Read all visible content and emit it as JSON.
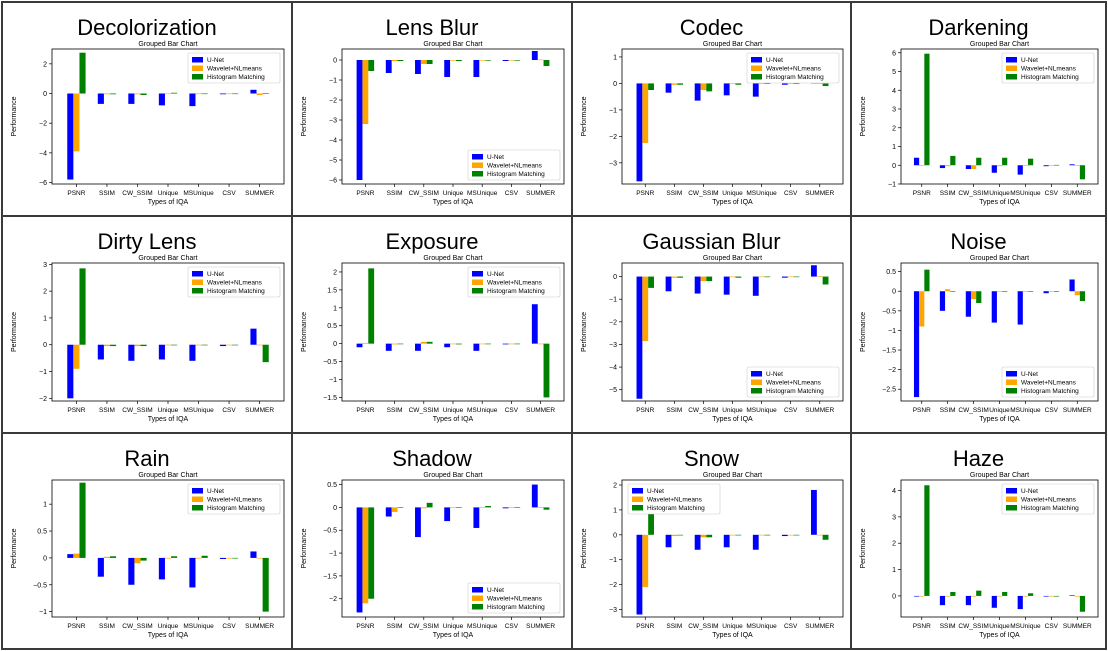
{
  "legend_labels": [
    "U-Net",
    "Wavelet+NLmeans",
    "Histogram Matching"
  ],
  "series_colors": [
    "#0000ff",
    "#ffa500",
    "#008000"
  ],
  "categories": [
    "PSNR",
    "SSIM",
    "CW_SSIM",
    "Unique",
    "MSUnique",
    "CSV",
    "SUMMER"
  ],
  "chart_title": "Grouped Bar Chart",
  "xlabel": "Types of IQA",
  "ylabel": "Performance",
  "chart_data": [
    {
      "type": "bar",
      "panel_title": "Decolorization",
      "title": "Grouped Bar Chart",
      "xlabel": "Types of IQA",
      "ylabel": "Performance",
      "categories": [
        "PSNR",
        "SSIM",
        "CW_SSIM",
        "Unique",
        "MSUnique",
        "CSV",
        "SUMMER"
      ],
      "series": [
        {
          "name": "U-Net",
          "values": [
            -5.8,
            -0.7,
            -0.7,
            -0.8,
            -0.85,
            -0.05,
            0.25
          ]
        },
        {
          "name": "Wavelet+NLmeans",
          "values": [
            -3.9,
            -0.05,
            -0.05,
            -0.02,
            0.0,
            0.0,
            -0.1
          ]
        },
        {
          "name": "Histogram Matching",
          "values": [
            2.75,
            -0.05,
            -0.1,
            0.05,
            0.0,
            0.0,
            0.03
          ]
        }
      ],
      "yticks": [
        -6,
        -4,
        -2,
        0,
        2
      ],
      "ylim": [
        -6.1,
        3.0
      ],
      "legend": "top-right"
    },
    {
      "type": "bar",
      "panel_title": "Lens Blur",
      "title": "Grouped Bar Chart",
      "xlabel": "Types of IQA",
      "ylabel": "Performance",
      "categories": [
        "PSNR",
        "SSIM",
        "CW_SSIM",
        "Unique",
        "MSUnique",
        "CSV",
        "SUMMER"
      ],
      "series": [
        {
          "name": "U-Net",
          "values": [
            -6.0,
            -0.65,
            -0.7,
            -0.85,
            -0.85,
            -0.05,
            0.45
          ]
        },
        {
          "name": "Wavelet+NLmeans",
          "values": [
            -3.2,
            -0.05,
            -0.2,
            -0.02,
            -0.02,
            0.0,
            0.02
          ]
        },
        {
          "name": "Histogram Matching",
          "values": [
            -0.55,
            -0.05,
            -0.2,
            -0.05,
            0.0,
            0.0,
            -0.3
          ]
        }
      ],
      "yticks": [
        -6,
        -5,
        -4,
        -3,
        -2,
        -1,
        0
      ],
      "ylim": [
        -6.2,
        0.55
      ],
      "legend": "bottom-right"
    },
    {
      "type": "bar",
      "panel_title": "Codec",
      "title": "Grouped Bar Chart",
      "xlabel": "Types of IQA",
      "ylabel": "Performance",
      "categories": [
        "PSNR",
        "SSIM",
        "CW_SSIM",
        "Unique",
        "MSUnique",
        "CSV",
        "SUMMER"
      ],
      "series": [
        {
          "name": "U-Net",
          "values": [
            -3.7,
            -0.35,
            -0.65,
            -0.45,
            -0.5,
            -0.05,
            1.1
          ]
        },
        {
          "name": "Wavelet+NLmeans",
          "values": [
            -2.25,
            -0.05,
            -0.25,
            -0.02,
            0.0,
            0.0,
            0.0
          ]
        },
        {
          "name": "Histogram Matching",
          "values": [
            -0.25,
            -0.05,
            -0.3,
            -0.05,
            0.0,
            0.0,
            -0.1
          ]
        }
      ],
      "yticks": [
        -3,
        -2,
        -1,
        0,
        1
      ],
      "ylim": [
        -3.8,
        1.3
      ],
      "legend": "top-right"
    },
    {
      "type": "bar",
      "panel_title": "Darkening",
      "title": "Grouped Bar Chart",
      "xlabel": "Types of IQA",
      "ylabel": "Performance",
      "categories": [
        "PSNR",
        "SSIM",
        "CW_SSIM",
        "Unique",
        "MSUnique",
        "CSV",
        "SUMMER"
      ],
      "series": [
        {
          "name": "U-Net",
          "values": [
            0.4,
            -0.15,
            -0.2,
            -0.4,
            -0.5,
            -0.05,
            0.05
          ]
        },
        {
          "name": "Wavelet+NLmeans",
          "values": [
            0.0,
            -0.05,
            -0.2,
            -0.05,
            0.0,
            0.0,
            0.0
          ]
        },
        {
          "name": "Histogram Matching",
          "values": [
            5.95,
            0.5,
            0.4,
            0.4,
            0.35,
            0.02,
            -0.75
          ]
        }
      ],
      "yticks": [
        -1,
        0,
        1,
        2,
        3,
        4,
        5,
        6
      ],
      "ylim": [
        -1.0,
        6.2
      ],
      "legend": "top-right"
    },
    {
      "type": "bar",
      "panel_title": "Dirty Lens",
      "title": "Grouped Bar Chart",
      "xlabel": "Types of IQA",
      "ylabel": "Performance",
      "categories": [
        "PSNR",
        "SSIM",
        "CW_SSIM",
        "Unique",
        "MSUnique",
        "CSV",
        "SUMMER"
      ],
      "series": [
        {
          "name": "U-Net",
          "values": [
            -2.0,
            -0.55,
            -0.6,
            -0.55,
            -0.6,
            -0.05,
            0.6
          ]
        },
        {
          "name": "Wavelet+NLmeans",
          "values": [
            -0.9,
            -0.05,
            -0.05,
            -0.02,
            0.0,
            0.0,
            0.0
          ]
        },
        {
          "name": "Histogram Matching",
          "values": [
            2.85,
            -0.05,
            -0.05,
            -0.02,
            0.0,
            0.0,
            -0.65
          ]
        }
      ],
      "yticks": [
        -2,
        -1,
        0,
        1,
        2,
        3
      ],
      "ylim": [
        -2.1,
        3.05
      ],
      "legend": "top-right"
    },
    {
      "type": "bar",
      "panel_title": "Exposure",
      "title": "Grouped Bar Chart",
      "xlabel": "Types of IQA",
      "ylabel": "Performance",
      "categories": [
        "PSNR",
        "SSIM",
        "CW_SSIM",
        "Unique",
        "MSUnique",
        "CSV",
        "SUMMER"
      ],
      "series": [
        {
          "name": "U-Net",
          "values": [
            -0.1,
            -0.2,
            -0.2,
            -0.1,
            -0.2,
            -0.02,
            1.1
          ]
        },
        {
          "name": "Wavelet+NLmeans",
          "values": [
            0.02,
            -0.02,
            0.05,
            0.0,
            0.0,
            0.0,
            0.0
          ]
        },
        {
          "name": "Histogram Matching",
          "values": [
            2.1,
            0.0,
            0.05,
            -0.02,
            0.0,
            0.0,
            -1.5
          ]
        }
      ],
      "yticks": [
        -1.5,
        -1.0,
        -0.5,
        0.0,
        0.5,
        1.0,
        1.5,
        2.0
      ],
      "ylim": [
        -1.6,
        2.25
      ],
      "legend": "top-right"
    },
    {
      "type": "bar",
      "panel_title": "Gaussian Blur",
      "title": "Grouped Bar Chart",
      "xlabel": "Types of IQA",
      "ylabel": "Performance",
      "categories": [
        "PSNR",
        "SSIM",
        "CW_SSIM",
        "Unique",
        "MSUnique",
        "CSV",
        "SUMMER"
      ],
      "series": [
        {
          "name": "U-Net",
          "values": [
            -5.4,
            -0.65,
            -0.75,
            -0.8,
            -0.85,
            -0.05,
            0.5
          ]
        },
        {
          "name": "Wavelet+NLmeans",
          "values": [
            -2.85,
            -0.05,
            -0.2,
            -0.02,
            0.0,
            0.0,
            0.02
          ]
        },
        {
          "name": "Histogram Matching",
          "values": [
            -0.5,
            -0.05,
            -0.2,
            -0.05,
            0.0,
            0.0,
            -0.35
          ]
        }
      ],
      "yticks": [
        -5,
        -4,
        -3,
        -2,
        -1,
        0
      ],
      "ylim": [
        -5.5,
        0.6
      ],
      "legend": "bottom-right"
    },
    {
      "type": "bar",
      "panel_title": "Noise",
      "title": "Grouped Bar Chart",
      "xlabel": "Types of IQA",
      "ylabel": "Performance",
      "categories": [
        "PSNR",
        "SSIM",
        "CW_SSIM",
        "Unique",
        "MSUnique",
        "CSV",
        "SUMMER"
      ],
      "series": [
        {
          "name": "U-Net",
          "values": [
            -2.7,
            -0.5,
            -0.65,
            -0.8,
            -0.85,
            -0.05,
            0.3
          ]
        },
        {
          "name": "Wavelet+NLmeans",
          "values": [
            -0.9,
            0.05,
            -0.2,
            0.0,
            0.0,
            0.0,
            -0.1
          ]
        },
        {
          "name": "Histogram Matching",
          "values": [
            0.55,
            0.0,
            -0.3,
            0.0,
            0.0,
            0.0,
            -0.25
          ]
        }
      ],
      "yticks": [
        -2.5,
        -2.0,
        -1.5,
        -1.0,
        -0.5,
        0.0,
        0.5
      ],
      "ylim": [
        -2.8,
        0.72
      ],
      "legend": "bottom-right"
    },
    {
      "type": "bar",
      "panel_title": "Rain",
      "title": "Grouped Bar Chart",
      "xlabel": "Types of IQA",
      "ylabel": "Performance",
      "categories": [
        "PSNR",
        "SSIM",
        "CW_SSIM",
        "Unique",
        "MSUnique",
        "CSV",
        "SUMMER"
      ],
      "series": [
        {
          "name": "U-Net",
          "values": [
            0.07,
            -0.35,
            -0.5,
            -0.4,
            -0.55,
            -0.02,
            0.12
          ]
        },
        {
          "name": "Wavelet+NLmeans",
          "values": [
            0.08,
            0.02,
            -0.1,
            0.0,
            0.0,
            0.0,
            0.0
          ]
        },
        {
          "name": "Histogram Matching",
          "values": [
            1.4,
            0.03,
            -0.05,
            0.03,
            0.04,
            0.0,
            -1.0
          ]
        }
      ],
      "yticks": [
        -1.0,
        -0.5,
        0.0,
        0.5,
        1.0
      ],
      "ylim": [
        -1.1,
        1.45
      ],
      "legend": "top-right"
    },
    {
      "type": "bar",
      "panel_title": "Shadow",
      "title": "Grouped Bar Chart",
      "xlabel": "Types of IQA",
      "ylabel": "Performance",
      "categories": [
        "PSNR",
        "SSIM",
        "CW_SSIM",
        "Unique",
        "MSUnique",
        "CSV",
        "SUMMER"
      ],
      "series": [
        {
          "name": "U-Net",
          "values": [
            -2.3,
            -0.2,
            -0.65,
            -0.3,
            -0.45,
            -0.02,
            0.5
          ]
        },
        {
          "name": "Wavelet+NLmeans",
          "values": [
            -2.1,
            -0.1,
            -0.02,
            0.0,
            0.0,
            0.0,
            0.0
          ]
        },
        {
          "name": "Histogram Matching",
          "values": [
            -2.0,
            0.0,
            0.1,
            0.0,
            0.03,
            0.0,
            -0.05
          ]
        }
      ],
      "yticks": [
        -2.0,
        -1.5,
        -1.0,
        -0.5,
        0.0,
        0.5
      ],
      "ylim": [
        -2.4,
        0.6
      ],
      "legend": "bottom-right"
    },
    {
      "type": "bar",
      "panel_title": "Snow",
      "title": "Grouped Bar Chart",
      "xlabel": "Types of IQA",
      "ylabel": "Performance",
      "categories": [
        "PSNR",
        "SSIM",
        "CW_SSIM",
        "Unique",
        "MSUnique",
        "CSV",
        "SUMMER"
      ],
      "series": [
        {
          "name": "U-Net",
          "values": [
            -3.2,
            -0.5,
            -0.6,
            -0.5,
            -0.6,
            -0.05,
            1.8
          ]
        },
        {
          "name": "Wavelet+NLmeans",
          "values": [
            -2.1,
            -0.05,
            -0.1,
            0.0,
            0.0,
            0.0,
            0.0
          ]
        },
        {
          "name": "Histogram Matching",
          "values": [
            0.9,
            0.0,
            -0.1,
            0.0,
            0.0,
            0.0,
            -0.2
          ]
        }
      ],
      "yticks": [
        -3,
        -2,
        -1,
        0,
        1,
        2
      ],
      "ylim": [
        -3.3,
        2.2
      ],
      "legend": "top-left"
    },
    {
      "type": "bar",
      "panel_title": "Haze",
      "title": "Grouped Bar Chart",
      "xlabel": "Types of IQA",
      "ylabel": "Performance",
      "categories": [
        "PSNR",
        "SSIM",
        "CW_SSIM",
        "Unique",
        "MSUnique",
        "CSV",
        "SUMMER"
      ],
      "series": [
        {
          "name": "U-Net",
          "values": [
            0.0,
            -0.35,
            -0.35,
            -0.45,
            -0.5,
            -0.02,
            0.02
          ]
        },
        {
          "name": "Wavelet+NLmeans",
          "values": [
            0.0,
            0.0,
            0.0,
            0.0,
            0.0,
            0.0,
            0.0
          ]
        },
        {
          "name": "Histogram Matching",
          "values": [
            4.2,
            0.15,
            0.2,
            0.15,
            0.1,
            0.0,
            -0.6
          ]
        }
      ],
      "yticks": [
        0,
        1,
        2,
        3,
        4
      ],
      "ylim": [
        -0.8,
        4.4
      ],
      "legend": "top-right"
    }
  ]
}
